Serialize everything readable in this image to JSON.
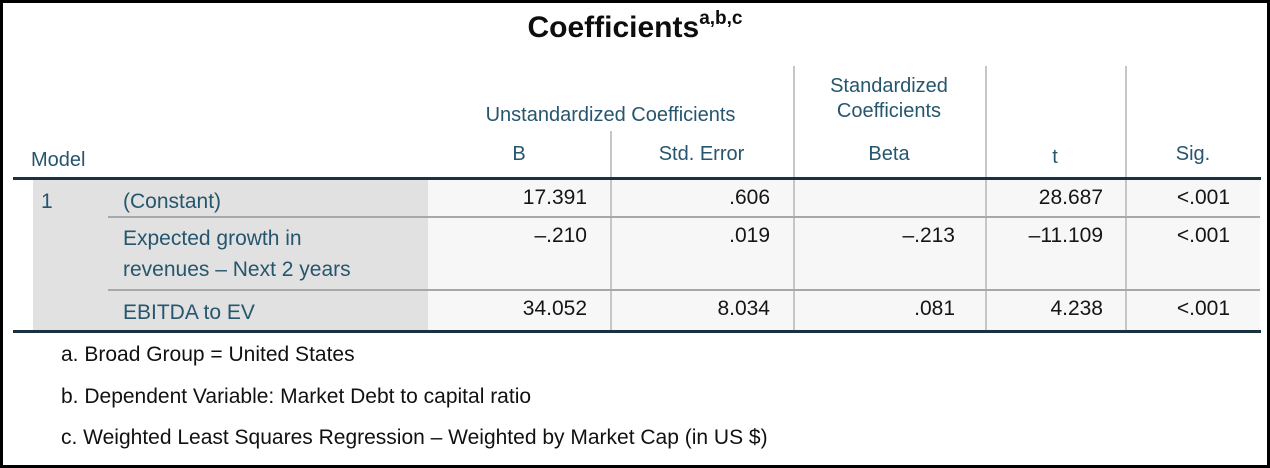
{
  "title": {
    "text": "Coefficients",
    "superscript": "a,b,c"
  },
  "table": {
    "model_header": "Model",
    "column_groups": {
      "unstandardized": "Unstandardized Coefficients",
      "standardized_line1": "Standardized",
      "standardized_line2": "Coefficients"
    },
    "columns": {
      "b": "B",
      "std_error": "Std. Error",
      "beta": "Beta",
      "t": "t",
      "sig": "Sig."
    },
    "model_number": "1",
    "rows": [
      {
        "label": "(Constant)",
        "b": "17.391",
        "std_error": ".606",
        "beta": "",
        "t": "28.687",
        "sig": "<.001"
      },
      {
        "label": "Expected growth in revenues – Next 2 years",
        "b": "–.210",
        "std_error": ".019",
        "beta": "–.213",
        "t": "–11.109",
        "sig": "<.001"
      },
      {
        "label": "EBITDA to EV",
        "b": "34.052",
        "std_error": "8.034",
        "beta": ".081",
        "t": "4.238",
        "sig": "<.001"
      }
    ]
  },
  "footnotes": [
    "a. Broad Group = United States",
    "b. Dependent Variable: Market Debt to capital ratio",
    "c. Weighted Least Squares Regression – Weighted by Market Cap (in US $)"
  ],
  "colors": {
    "header_text": "#26566d",
    "value_text": "#151515",
    "label_panel_bg": "#e1e1e1",
    "data_panel_bg": "#f7f7f8",
    "dark_rule": "#1a3140",
    "light_rule": "#c6c6c6",
    "row_divider": "#a8a8a8",
    "frame_border": "#000000"
  }
}
